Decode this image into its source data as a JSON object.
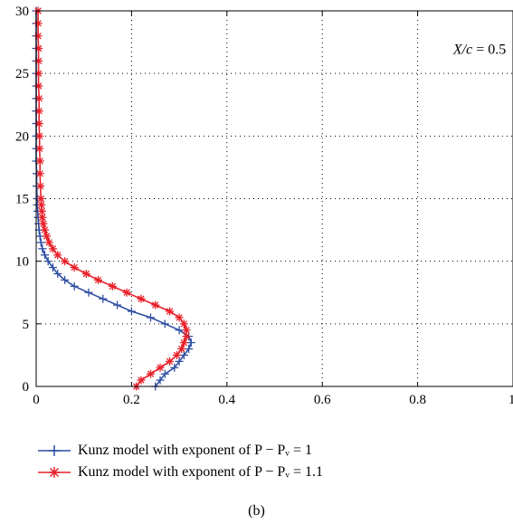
{
  "chart_data": {
    "type": "line",
    "title": "",
    "xlabel": "",
    "ylabel": "",
    "xlim": [
      0,
      1
    ],
    "ylim": [
      0,
      30
    ],
    "x_ticks": [
      0,
      0.2,
      0.4,
      0.6,
      0.8,
      1
    ],
    "x_tick_labels": [
      "0",
      "0.2",
      "0.4",
      "0.6",
      "0.8",
      "1"
    ],
    "y_ticks": [
      0,
      5,
      10,
      15,
      20,
      25,
      30
    ],
    "y_tick_labels": [
      "0",
      "5",
      "10",
      "15",
      "20",
      "25",
      "30"
    ],
    "grid": true,
    "legend_position": "below",
    "annotation": "X/c = 0.5",
    "series": [
      {
        "name": "Kunz model with exponent of P − Pᵥ = 1",
        "color": "#2e4fa3",
        "marker": "plus",
        "points": [
          [
            0.25,
            0.0
          ],
          [
            0.26,
            0.5
          ],
          [
            0.27,
            1.0
          ],
          [
            0.29,
            1.5
          ],
          [
            0.3,
            2.0
          ],
          [
            0.31,
            2.5
          ],
          [
            0.32,
            3.0
          ],
          [
            0.325,
            3.5
          ],
          [
            0.32,
            4.0
          ],
          [
            0.3,
            4.5
          ],
          [
            0.27,
            5.0
          ],
          [
            0.24,
            5.5
          ],
          [
            0.2,
            6.0
          ],
          [
            0.17,
            6.5
          ],
          [
            0.14,
            7.0
          ],
          [
            0.11,
            7.5
          ],
          [
            0.08,
            8.0
          ],
          [
            0.06,
            8.5
          ],
          [
            0.045,
            9.0
          ],
          [
            0.035,
            9.5
          ],
          [
            0.025,
            10.0
          ],
          [
            0.018,
            10.5
          ],
          [
            0.013,
            11.0
          ],
          [
            0.01,
            11.5
          ],
          [
            0.008,
            12.0
          ],
          [
            0.006,
            12.5
          ],
          [
            0.005,
            13.0
          ],
          [
            0.004,
            13.5
          ],
          [
            0.003,
            14.0
          ],
          [
            0.002,
            14.5
          ],
          [
            0.002,
            15.0
          ],
          [
            0.001,
            16.0
          ],
          [
            0.001,
            17.0
          ],
          [
            0.0,
            18.0
          ],
          [
            0.0,
            19.0
          ],
          [
            0.0,
            20.0
          ],
          [
            0.0,
            21.0
          ],
          [
            0.0,
            22.0
          ],
          [
            0.0,
            23.0
          ],
          [
            0.0,
            24.0
          ],
          [
            0.0,
            25.0
          ],
          [
            0.0,
            26.0
          ],
          [
            0.0,
            27.0
          ],
          [
            0.0,
            28.0
          ],
          [
            0.0,
            29.0
          ],
          [
            0.0,
            30.0
          ]
        ]
      },
      {
        "name": "Kunz model with exponent of P − Pᵥ = 1.1",
        "color": "#e8202a",
        "marker": "star",
        "points": [
          [
            0.21,
            0.0
          ],
          [
            0.22,
            0.5
          ],
          [
            0.24,
            1.0
          ],
          [
            0.26,
            1.5
          ],
          [
            0.28,
            2.0
          ],
          [
            0.295,
            2.5
          ],
          [
            0.305,
            3.0
          ],
          [
            0.31,
            3.5
          ],
          [
            0.315,
            4.0
          ],
          [
            0.315,
            4.5
          ],
          [
            0.31,
            5.0
          ],
          [
            0.3,
            5.5
          ],
          [
            0.28,
            6.0
          ],
          [
            0.25,
            6.5
          ],
          [
            0.22,
            7.0
          ],
          [
            0.19,
            7.5
          ],
          [
            0.16,
            8.0
          ],
          [
            0.13,
            8.5
          ],
          [
            0.105,
            9.0
          ],
          [
            0.08,
            9.5
          ],
          [
            0.06,
            10.0
          ],
          [
            0.045,
            10.5
          ],
          [
            0.035,
            11.0
          ],
          [
            0.027,
            11.5
          ],
          [
            0.022,
            12.0
          ],
          [
            0.018,
            12.5
          ],
          [
            0.015,
            13.0
          ],
          [
            0.013,
            13.5
          ],
          [
            0.012,
            14.0
          ],
          [
            0.011,
            14.5
          ],
          [
            0.01,
            15.0
          ],
          [
            0.009,
            16.0
          ],
          [
            0.008,
            17.0
          ],
          [
            0.008,
            18.0
          ],
          [
            0.007,
            19.0
          ],
          [
            0.007,
            20.0
          ],
          [
            0.006,
            21.0
          ],
          [
            0.006,
            22.0
          ],
          [
            0.006,
            23.0
          ],
          [
            0.005,
            24.0
          ],
          [
            0.005,
            25.0
          ],
          [
            0.005,
            26.0
          ],
          [
            0.005,
            27.0
          ],
          [
            0.004,
            28.0
          ],
          [
            0.004,
            29.0
          ],
          [
            0.004,
            30.0
          ]
        ]
      }
    ]
  },
  "caption": "(b)"
}
